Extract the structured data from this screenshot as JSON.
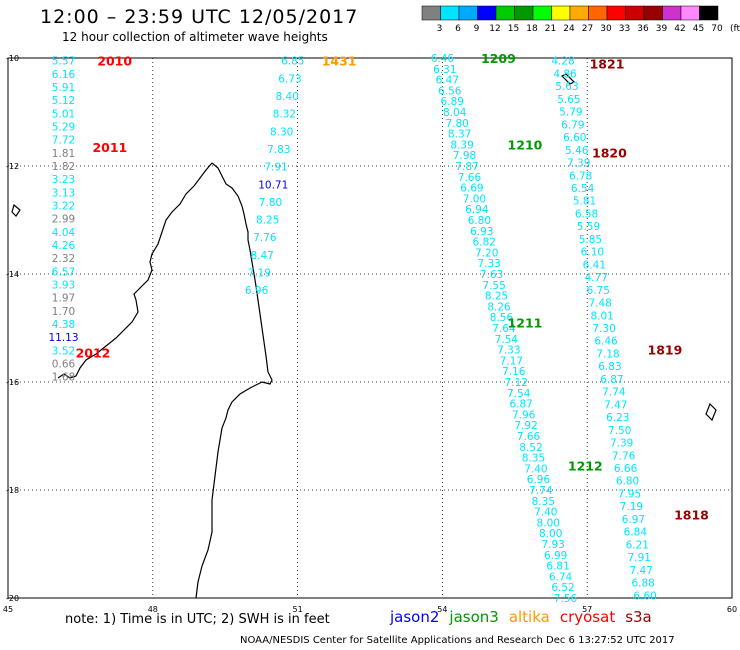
{
  "title": "12:00 – 23:59 UTC 12/05/2017",
  "subtitle": "12 hour collection of altimeter wave heights",
  "colorbar": {
    "unit": "(ft)",
    "labels": [
      "3",
      "6",
      "9",
      "12",
      "15",
      "18",
      "21",
      "24",
      "27",
      "30",
      "33",
      "36",
      "39",
      "42",
      "45",
      "70"
    ],
    "colors": [
      "#808080",
      "#00e5ff",
      "#00aaff",
      "#0000ff",
      "#00cc00",
      "#009900",
      "#00ff00",
      "#ffff00",
      "#ffaa00",
      "#ff6600",
      "#ff0000",
      "#cc0000",
      "#990000",
      "#cc33cc",
      "#ff88ff",
      "#000000"
    ]
  },
  "axes": {
    "lon_labels": [
      "45",
      "48",
      "51",
      "54",
      "57",
      "60"
    ],
    "lat_labels": [
      "-10",
      "-12",
      "-14",
      "-16",
      "-18",
      "-20"
    ]
  },
  "footnote": "note: 1) Time is in UTC; 2) SWH is in feet",
  "credit": "NOAA/NESDIS Center for Satellite Applications and Research   Dec  6 13:27:52 UTC 2017",
  "legend": [
    {
      "name": "jason2",
      "color": "#0000ff"
    },
    {
      "name": "jason3",
      "color": "#009900"
    },
    {
      "name": "altika",
      "color": "#ff9900"
    },
    {
      "name": "cryosat",
      "color": "#ff0000"
    },
    {
      "name": "s3a",
      "color": "#990000"
    }
  ],
  "time_labels": [
    {
      "text": "2010",
      "color": "#ff0000",
      "lon": 46.85,
      "lat": -10.05
    },
    {
      "text": "2011",
      "color": "#ff0000",
      "lon": 46.75,
      "lat": -11.65
    },
    {
      "text": "2012",
      "color": "#ff0000",
      "lon": 46.4,
      "lat": -15.45
    },
    {
      "text": "1431",
      "color": "#ff9900",
      "lon": 51.5,
      "lat": -10.05
    },
    {
      "text": "1209",
      "color": "#009900",
      "lon": 54.8,
      "lat": -10.0
    },
    {
      "text": "1210",
      "color": "#009900",
      "lon": 55.35,
      "lat": -11.6
    },
    {
      "text": "1211",
      "color": "#009900",
      "lon": 55.35,
      "lat": -14.9
    },
    {
      "text": "1212",
      "color": "#009900",
      "lon": 56.6,
      "lat": -17.55
    },
    {
      "text": "1821",
      "color": "#990000",
      "lon": 57.05,
      "lat": -10.1
    },
    {
      "text": "1820",
      "color": "#990000",
      "lon": 57.1,
      "lat": -11.75
    },
    {
      "text": "1819",
      "color": "#990000",
      "lon": 58.25,
      "lat": -15.4
    },
    {
      "text": "1818",
      "color": "#990000",
      "lon": 58.8,
      "lat": -18.45
    }
  ],
  "tracks": [
    {
      "name": "cryosat-2010",
      "lon_start": 46.15,
      "lat_start": -10.05,
      "lon_end": 46.15,
      "lat_end": -15.9,
      "values": [
        {
          "v": "5.57",
          "c": "#00e5ff"
        },
        {
          "v": "6.16",
          "c": "#00e5ff"
        },
        {
          "v": "5.91",
          "c": "#00e5ff"
        },
        {
          "v": "5.12",
          "c": "#00e5ff"
        },
        {
          "v": "5.01",
          "c": "#00e5ff"
        },
        {
          "v": "5.29",
          "c": "#00e5ff"
        },
        {
          "v": "7.72",
          "c": "#00e5ff"
        },
        {
          "v": "1.81",
          "c": "#808080"
        },
        {
          "v": "1.82",
          "c": "#808080"
        },
        {
          "v": "3.23",
          "c": "#00e5ff"
        },
        {
          "v": "3.13",
          "c": "#00e5ff"
        },
        {
          "v": "3.22",
          "c": "#00e5ff"
        },
        {
          "v": "2.99",
          "c": "#808080"
        },
        {
          "v": "4.04",
          "c": "#00e5ff"
        },
        {
          "v": "4.26",
          "c": "#00e5ff"
        },
        {
          "v": "2.32",
          "c": "#808080"
        },
        {
          "v": "6.57",
          "c": "#00e5ff"
        },
        {
          "v": "3.93",
          "c": "#00e5ff"
        },
        {
          "v": "1.97",
          "c": "#808080"
        },
        {
          "v": "1.70",
          "c": "#808080"
        },
        {
          "v": "4.38",
          "c": "#00e5ff"
        },
        {
          "v": "11.13",
          "c": "#0000ff"
        },
        {
          "v": "3.52",
          "c": "#00e5ff"
        },
        {
          "v": "0.66",
          "c": "#808080"
        },
        {
          "v": "1.68",
          "c": "#808080"
        }
      ]
    },
    {
      "name": "altika-1431",
      "lon_start": 50.9,
      "lat_start": -10.05,
      "lon_end": 50.15,
      "lat_end": -14.3,
      "values": [
        {
          "v": "6.85",
          "c": "#00e5ff"
        },
        {
          "v": "6.73",
          "c": "#00e5ff"
        },
        {
          "v": "8.40",
          "c": "#00e5ff"
        },
        {
          "v": "8.32",
          "c": "#00e5ff"
        },
        {
          "v": "8.30",
          "c": "#00e5ff"
        },
        {
          "v": "7.83",
          "c": "#00e5ff"
        },
        {
          "v": "7.91",
          "c": "#00e5ff"
        },
        {
          "v": "10.71",
          "c": "#0000ff"
        },
        {
          "v": "7.80",
          "c": "#00e5ff"
        },
        {
          "v": "8.25",
          "c": "#00e5ff"
        },
        {
          "v": "7.76",
          "c": "#00e5ff"
        },
        {
          "v": "8.47",
          "c": "#00e5ff"
        },
        {
          "v": "7.19",
          "c": "#00e5ff"
        },
        {
          "v": "6.96",
          "c": "#00e5ff"
        }
      ]
    },
    {
      "name": "jason3-1209",
      "lon_start": 54.0,
      "lat_start": -10.0,
      "lon_end": 56.55,
      "lat_end": -20.0,
      "values": [
        {
          "v": "6.46",
          "c": "#00e5ff"
        },
        {
          "v": "6.31",
          "c": "#00e5ff"
        },
        {
          "v": "6.47",
          "c": "#00e5ff"
        },
        {
          "v": "6.56",
          "c": "#00e5ff"
        },
        {
          "v": "6.89",
          "c": "#00e5ff"
        },
        {
          "v": "8.04",
          "c": "#00e5ff"
        },
        {
          "v": "7.80",
          "c": "#00e5ff"
        },
        {
          "v": "8.37",
          "c": "#00e5ff"
        },
        {
          "v": "8.39",
          "c": "#00e5ff"
        },
        {
          "v": "7.98",
          "c": "#00e5ff"
        },
        {
          "v": "7.87",
          "c": "#00e5ff"
        },
        {
          "v": "7.66",
          "c": "#00e5ff"
        },
        {
          "v": "6.69",
          "c": "#00e5ff"
        },
        {
          "v": "7.00",
          "c": "#00e5ff"
        },
        {
          "v": "6.94",
          "c": "#00e5ff"
        },
        {
          "v": "6.80",
          "c": "#00e5ff"
        },
        {
          "v": "6.93",
          "c": "#00e5ff"
        },
        {
          "v": "6.82",
          "c": "#00e5ff"
        },
        {
          "v": "7.20",
          "c": "#00e5ff"
        },
        {
          "v": "7.33",
          "c": "#00e5ff"
        },
        {
          "v": "7.63",
          "c": "#00e5ff"
        },
        {
          "v": "7.55",
          "c": "#00e5ff"
        },
        {
          "v": "8.25",
          "c": "#00e5ff"
        },
        {
          "v": "8.26",
          "c": "#00e5ff"
        },
        {
          "v": "8.56",
          "c": "#00e5ff"
        },
        {
          "v": "7.64",
          "c": "#00e5ff"
        },
        {
          "v": "7.54",
          "c": "#00e5ff"
        },
        {
          "v": "7.33",
          "c": "#00e5ff"
        },
        {
          "v": "7.17",
          "c": "#00e5ff"
        },
        {
          "v": "7.16",
          "c": "#00e5ff"
        },
        {
          "v": "7.12",
          "c": "#00e5ff"
        },
        {
          "v": "7.54",
          "c": "#00e5ff"
        },
        {
          "v": "6.87",
          "c": "#00e5ff"
        },
        {
          "v": "7.96",
          "c": "#00e5ff"
        },
        {
          "v": "7.92",
          "c": "#00e5ff"
        },
        {
          "v": "7.66",
          "c": "#00e5ff"
        },
        {
          "v": "8.52",
          "c": "#00e5ff"
        },
        {
          "v": "8.35",
          "c": "#00e5ff"
        },
        {
          "v": "7.40",
          "c": "#00e5ff"
        },
        {
          "v": "6.96",
          "c": "#00e5ff"
        },
        {
          "v": "7.74",
          "c": "#00e5ff"
        },
        {
          "v": "8.35",
          "c": "#00e5ff"
        },
        {
          "v": "7.40",
          "c": "#00e5ff"
        },
        {
          "v": "8.00",
          "c": "#00e5ff"
        },
        {
          "v": "8.00",
          "c": "#00e5ff"
        },
        {
          "v": "7.93",
          "c": "#00e5ff"
        },
        {
          "v": "6.99",
          "c": "#00e5ff"
        },
        {
          "v": "6.81",
          "c": "#00e5ff"
        },
        {
          "v": "6.74",
          "c": "#00e5ff"
        },
        {
          "v": "6.52",
          "c": "#00e5ff"
        },
        {
          "v": "7.56",
          "c": "#00e5ff"
        }
      ]
    },
    {
      "name": "s3a-1821",
      "lon_start": 56.5,
      "lat_start": -10.05,
      "lon_end": 58.2,
      "lat_end": -19.95,
      "values": [
        {
          "v": "4.28",
          "c": "#00e5ff"
        },
        {
          "v": "4.86",
          "c": "#00e5ff"
        },
        {
          "v": "5.63",
          "c": "#00e5ff"
        },
        {
          "v": "5.65",
          "c": "#00e5ff"
        },
        {
          "v": "5.79",
          "c": "#00e5ff"
        },
        {
          "v": "6.79",
          "c": "#00e5ff"
        },
        {
          "v": "6.60",
          "c": "#00e5ff"
        },
        {
          "v": "5.46",
          "c": "#00e5ff"
        },
        {
          "v": "7.39",
          "c": "#00e5ff"
        },
        {
          "v": "6.78",
          "c": "#00e5ff"
        },
        {
          "v": "6.54",
          "c": "#00e5ff"
        },
        {
          "v": "5.81",
          "c": "#00e5ff"
        },
        {
          "v": "6.58",
          "c": "#00e5ff"
        },
        {
          "v": "5.59",
          "c": "#00e5ff"
        },
        {
          "v": "5.85",
          "c": "#00e5ff"
        },
        {
          "v": "6.10",
          "c": "#00e5ff"
        },
        {
          "v": "6.41",
          "c": "#00e5ff"
        },
        {
          "v": "4.77",
          "c": "#00e5ff"
        },
        {
          "v": "6.75",
          "c": "#00e5ff"
        },
        {
          "v": "7.48",
          "c": "#00e5ff"
        },
        {
          "v": "8.01",
          "c": "#00e5ff"
        },
        {
          "v": "7.30",
          "c": "#00e5ff"
        },
        {
          "v": "6.46",
          "c": "#00e5ff"
        },
        {
          "v": "7.18",
          "c": "#00e5ff"
        },
        {
          "v": "6.83",
          "c": "#00e5ff"
        },
        {
          "v": "6.87",
          "c": "#00e5ff"
        },
        {
          "v": "7.74",
          "c": "#00e5ff"
        },
        {
          "v": "7.47",
          "c": "#00e5ff"
        },
        {
          "v": "6.23",
          "c": "#00e5ff"
        },
        {
          "v": "7.50",
          "c": "#00e5ff"
        },
        {
          "v": "7.39",
          "c": "#00e5ff"
        },
        {
          "v": "7.76",
          "c": "#00e5ff"
        },
        {
          "v": "6.66",
          "c": "#00e5ff"
        },
        {
          "v": "6.80",
          "c": "#00e5ff"
        },
        {
          "v": "7.95",
          "c": "#00e5ff"
        },
        {
          "v": "7.19",
          "c": "#00e5ff"
        },
        {
          "v": "6.97",
          "c": "#00e5ff"
        },
        {
          "v": "6.84",
          "c": "#00e5ff"
        },
        {
          "v": "6.21",
          "c": "#00e5ff"
        },
        {
          "v": "7.91",
          "c": "#00e5ff"
        },
        {
          "v": "7.47",
          "c": "#00e5ff"
        },
        {
          "v": "6.88",
          "c": "#00e5ff"
        },
        {
          "v": "6.60",
          "c": "#00e5ff"
        }
      ]
    }
  ]
}
